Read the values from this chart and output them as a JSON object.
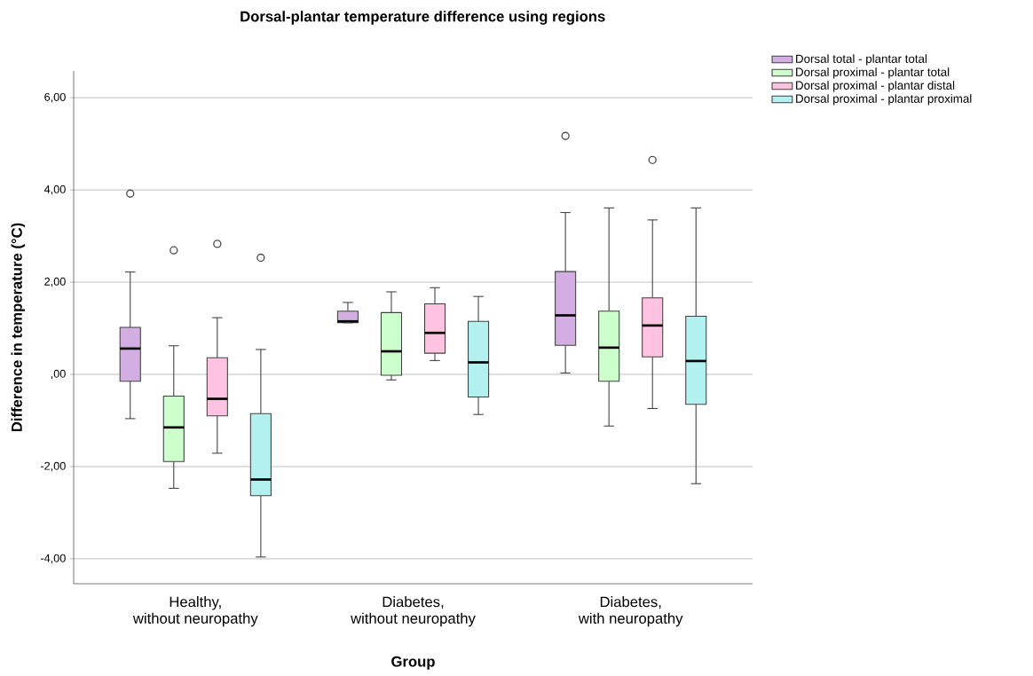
{
  "chart_data": {
    "type": "box",
    "title": "Dorsal-plantar temperature difference using regions",
    "xlabel": "Group",
    "ylabel": "Difference in temperature (°C)",
    "categories": [
      "Healthy,\nwithout neuropathy",
      "Diabetes,\nwithout neuropathy",
      "Diabetes,\nwith neuropathy"
    ],
    "ylim": [
      -4.54,
      6.58
    ],
    "yticks": [
      {
        "value": -4,
        "label": "-4,00"
      },
      {
        "value": -2,
        "label": "-2,00"
      },
      {
        "value": 0,
        "label": ",00"
      },
      {
        "value": 2,
        "label": "2,00"
      },
      {
        "value": 4,
        "label": "4,00"
      },
      {
        "value": 6,
        "label": "6,00"
      }
    ],
    "grid": "y",
    "legend": "top right",
    "series": [
      {
        "name": "Dorsal total - plantar total",
        "color": "#d3aee3",
        "boxes": [
          {
            "low": -0.96,
            "q1": -0.15,
            "median": 0.56,
            "q3": 1.02,
            "high": 2.22,
            "outliers": [
              3.92
            ]
          },
          {
            "low": 1.12,
            "q1": 1.12,
            "median": 1.15,
            "q3": 1.37,
            "high": 1.56
          },
          {
            "low": 0.03,
            "q1": 0.63,
            "median": 1.28,
            "q3": 2.23,
            "high": 3.51,
            "outliers": [
              5.17
            ]
          }
        ]
      },
      {
        "name": "Dorsal proximal - plantar total",
        "color": "#ccffcc",
        "boxes": [
          {
            "low": -2.47,
            "q1": -1.89,
            "median": -1.15,
            "q3": -0.47,
            "high": 0.62,
            "outliers": [
              2.69
            ]
          },
          {
            "low": -0.12,
            "q1": -0.02,
            "median": 0.5,
            "q3": 1.34,
            "high": 1.79
          },
          {
            "low": -1.12,
            "q1": -0.15,
            "median": 0.58,
            "q3": 1.37,
            "high": 3.61
          }
        ]
      },
      {
        "name": "Dorsal proximal - plantar distal",
        "color": "#ffc2e0",
        "boxes": [
          {
            "low": -1.71,
            "q1": -0.9,
            "median": -0.53,
            "q3": 0.36,
            "high": 1.23,
            "outliers": [
              2.83
            ]
          },
          {
            "low": 0.3,
            "q1": 0.46,
            "median": 0.9,
            "q3": 1.53,
            "high": 1.88
          },
          {
            "low": -0.74,
            "q1": 0.38,
            "median": 1.06,
            "q3": 1.66,
            "high": 3.35,
            "outliers": [
              4.65
            ]
          }
        ]
      },
      {
        "name": "Dorsal proximal - plantar proximal",
        "color": "#b3f0f0",
        "boxes": [
          {
            "low": -3.96,
            "q1": -2.63,
            "median": -2.28,
            "q3": -0.85,
            "high": 0.54,
            "outliers": [
              2.53
            ]
          },
          {
            "low": -0.87,
            "q1": -0.49,
            "median": 0.26,
            "q3": 1.15,
            "high": 1.69
          },
          {
            "low": -2.37,
            "q1": -0.65,
            "median": 0.29,
            "q3": 1.26,
            "high": 3.61
          }
        ]
      }
    ]
  }
}
